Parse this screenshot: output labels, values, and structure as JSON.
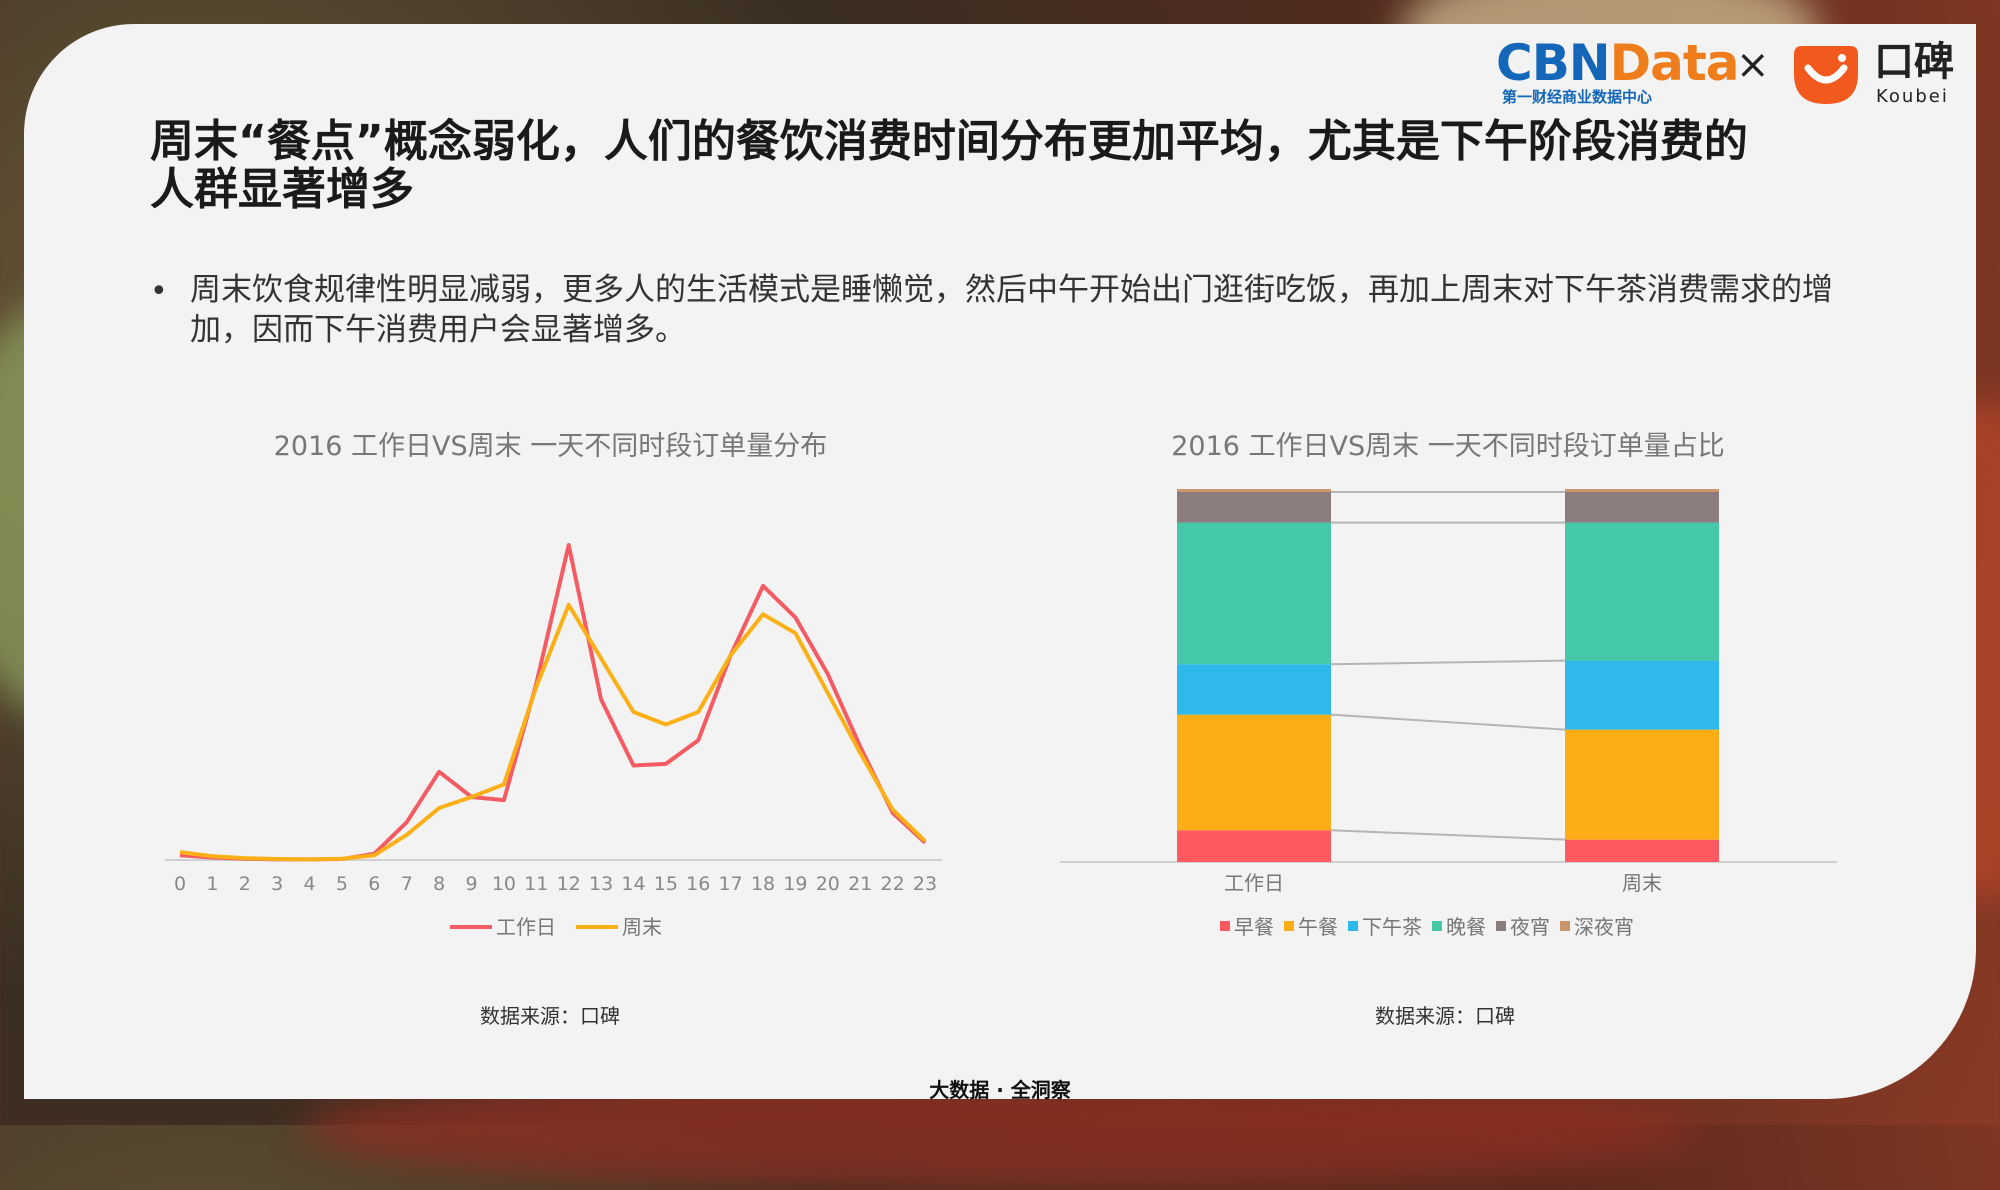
{
  "title": "周末“餐点”概念弱化，人们的餐饮消费时间分布更加平均，尤其是下午阶段消费的人群显著增多",
  "bullet": "周末饮食规律性明显减弱，更多人的生活模式是睡懒觉，然后中午开始出门逛街吃饭，再加上周末对下午茶消费需求的增加，因而下午消费用户会显著增多。",
  "logo": {
    "cbn_left": "CBN",
    "cbn_right": "Data",
    "cbn_sub": "第一财经商业数据中心",
    "times": "×",
    "koubei_cn": "口碑",
    "koubei_en": "Koubei"
  },
  "footer": "大数据 · 全洞察",
  "colors": {
    "workday": "#f45b63",
    "weekend": "#fbb017",
    "breakfast": "#ff5a5f",
    "lunch": "#fdae16",
    "tea": "#2fb8ec",
    "dinner": "#45c8a8",
    "night": "#8b7d7d",
    "latenight": "#c9956b"
  },
  "chart_data": [
    {
      "type": "line",
      "title": "2016 工作日VS周末 一天不同时段订单量分布",
      "x": [
        "0",
        "1",
        "2",
        "3",
        "4",
        "5",
        "6",
        "7",
        "8",
        "9",
        "10",
        "11",
        "12",
        "13",
        "14",
        "15",
        "16",
        "17",
        "18",
        "19",
        "20",
        "21",
        "22",
        "23"
      ],
      "ylim": [
        0,
        100
      ],
      "series": [
        {
          "name": "工作日",
          "values": [
            1.5,
            0.8,
            0.4,
            0.2,
            0.2,
            0.3,
            2,
            12,
            28,
            20,
            19,
            56,
            100,
            51,
            30,
            30.5,
            38,
            65,
            87,
            77,
            59,
            36,
            15,
            5.5
          ]
        },
        {
          "name": "周末",
          "values": [
            2.5,
            1.2,
            0.6,
            0.3,
            0.2,
            0.4,
            1.5,
            8,
            16.5,
            20,
            24,
            55,
            81,
            64,
            47,
            43,
            47,
            65,
            78,
            72,
            53,
            34,
            16,
            6
          ]
        }
      ],
      "legend": "bottom",
      "source": "数据来源：口碑"
    },
    {
      "type": "bar",
      "stacked": true,
      "title": "2016 工作日VS周末 一天不同时段订单量占比",
      "categories": [
        "工作日",
        "周末"
      ],
      "ylim": [
        0,
        100
      ],
      "series": [
        {
          "name": "早餐",
          "values": [
            8.5,
            6
          ]
        },
        {
          "name": "午餐",
          "values": [
            31,
            29.5
          ]
        },
        {
          "name": "下午茶",
          "values": [
            13.5,
            18.5
          ]
        },
        {
          "name": "晚餐",
          "values": [
            38,
            37
          ]
        },
        {
          "name": "夜宵",
          "values": [
            8.2,
            8.2
          ]
        },
        {
          "name": "深夜宵",
          "values": [
            0.8,
            0.8
          ]
        }
      ],
      "legend": "bottom",
      "source": "数据来源：口碑"
    }
  ]
}
